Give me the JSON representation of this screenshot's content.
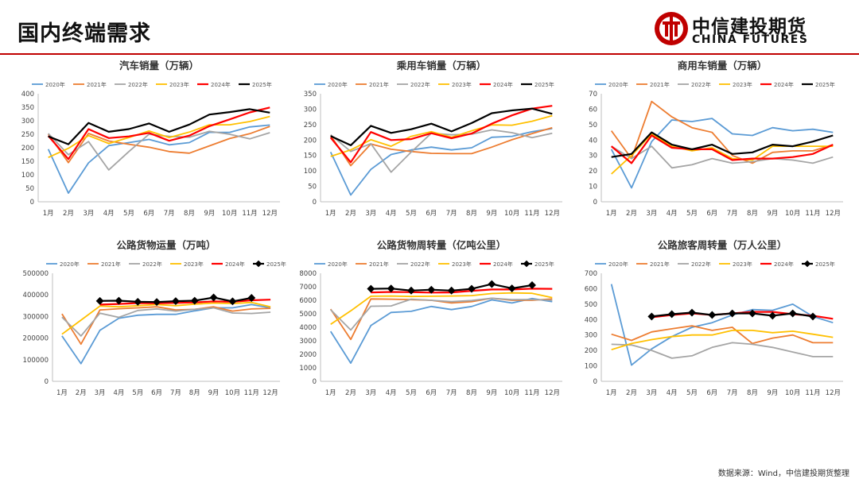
{
  "header": {
    "title": "国内终端需求",
    "logo_cn": "中信建投期货",
    "logo_en": "CHINA FUTURES",
    "brand_color": "#c00000"
  },
  "footer": {
    "source": "数据来源：Wind，中信建投期货整理"
  },
  "legend_labels": [
    "2020年",
    "2021年",
    "2022年",
    "2023年",
    "2024年",
    "2025年"
  ],
  "series_colors": [
    "#5b9bd5",
    "#ed7d31",
    "#a5a5a5",
    "#ffc000",
    "#ff0000",
    "#000000"
  ],
  "chart_data": [
    {
      "type": "line",
      "title": "汽车销量（万辆）",
      "categories": [
        "1月",
        "2月",
        "3月",
        "4月",
        "5月",
        "6月",
        "7月",
        "8月",
        "9月",
        "10月",
        "11月",
        "12月"
      ],
      "ylim": [
        0,
        400
      ],
      "yticks": [
        "0",
        "50",
        "100",
        "150",
        "200",
        "250",
        "300",
        "350",
        "400"
      ],
      "grid": false,
      "legend": "top",
      "series": [
        {
          "name": "2020年",
          "values": [
            195,
            32,
            144,
            208,
            219,
            231,
            211,
            219,
            257,
            257,
            277,
            284
          ]
        },
        {
          "name": "2021年",
          "values": [
            251,
            145,
            253,
            225,
            213,
            202,
            186,
            180,
            207,
            234,
            252,
            279
          ]
        },
        {
          "name": "2022年",
          "values": [
            253,
            174,
            223,
            118,
            186,
            250,
            242,
            239,
            261,
            250,
            233,
            256
          ]
        },
        {
          "name": "2023年",
          "values": [
            164,
            198,
            245,
            216,
            238,
            262,
            238,
            258,
            285,
            285,
            297,
            316
          ]
        },
        {
          "name": "2024年",
          "values": [
            244,
            158,
            269,
            236,
            242,
            255,
            226,
            245,
            280,
            305,
            331,
            349
          ]
        },
        {
          "name": "2025年",
          "values": [
            242,
            213,
            292,
            259,
            269,
            290,
            259,
            286,
            323,
            332,
            343,
            330
          ]
        }
      ]
    },
    {
      "type": "line",
      "title": "乘用车销量（万辆）",
      "categories": [
        "1月",
        "2月",
        "3月",
        "4月",
        "5月",
        "6月",
        "7月",
        "8月",
        "9月",
        "10月",
        "11月",
        "12月"
      ],
      "ylim": [
        0,
        350
      ],
      "yticks": [
        "0",
        "50",
        "100",
        "150",
        "200",
        "250",
        "300",
        "350"
      ],
      "grid": false,
      "legend": "top",
      "series": [
        {
          "name": "2020年",
          "values": [
            161,
            22,
            105,
            153,
            168,
            177,
            168,
            175,
            209,
            212,
            227,
            237
          ]
        },
        {
          "name": "2021年",
          "values": [
            215,
            117,
            187,
            170,
            163,
            157,
            156,
            156,
            177,
            201,
            221,
            240
          ]
        },
        {
          "name": "2022年",
          "values": [
            217,
            163,
            188,
            96,
            161,
            222,
            217,
            219,
            233,
            224,
            208,
            222
          ]
        },
        {
          "name": "2023年",
          "values": [
            147,
            168,
            201,
            180,
            212,
            227,
            209,
            230,
            249,
            248,
            261,
            279
          ]
        },
        {
          "name": "2024年",
          "values": [
            208,
            128,
            226,
            200,
            203,
            222,
            206,
            221,
            253,
            280,
            302,
            311
          ]
        },
        {
          "name": "2025年",
          "values": [
            213,
            183,
            246,
            223,
            235,
            253,
            228,
            255,
            287,
            296,
            302,
            285
          ]
        }
      ]
    },
    {
      "type": "line",
      "title": "商用车销量（万辆）",
      "categories": [
        "1月",
        "2月",
        "3月",
        "4月",
        "5月",
        "6月",
        "7月",
        "8月",
        "9月",
        "10月",
        "11月",
        "12月"
      ],
      "ylim": [
        0,
        70
      ],
      "yticks": [
        "0",
        "10",
        "20",
        "30",
        "40",
        "50",
        "60",
        "70"
      ],
      "grid": false,
      "legend": "top",
      "series": [
        {
          "name": "2020年",
          "values": [
            34,
            9,
            39,
            53,
            52,
            54,
            44,
            43,
            48,
            46,
            47,
            45
          ]
        },
        {
          "name": "2021年",
          "values": [
            46,
            28,
            65,
            55,
            48,
            45,
            30,
            25,
            32,
            33,
            33,
            37
          ]
        },
        {
          "name": "2022年",
          "values": [
            36,
            28,
            36,
            22,
            24,
            28,
            25,
            26,
            28,
            27,
            25,
            29
          ]
        },
        {
          "name": "2023年",
          "values": [
            18,
            30,
            44,
            36,
            33,
            35,
            28,
            27,
            36,
            36,
            36,
            36
          ]
        },
        {
          "name": "2024年",
          "values": [
            36,
            25,
            43,
            35,
            34,
            34,
            27,
            28,
            28,
            29,
            31,
            37
          ]
        },
        {
          "name": "2025年",
          "values": [
            29,
            31,
            45,
            37,
            34,
            37,
            31,
            32,
            37,
            36,
            39,
            43
          ]
        }
      ]
    },
    {
      "type": "line",
      "title": "公路货物运量（万吨）",
      "categories": [
        "1月",
        "2月",
        "3月",
        "4月",
        "5月",
        "6月",
        "7月",
        "8月",
        "9月",
        "10月",
        "11月",
        "12月"
      ],
      "ylim": [
        0,
        500000
      ],
      "yticks": [
        "0",
        "100000",
        "200000",
        "300000",
        "400000",
        "500000"
      ],
      "grid": false,
      "legend": "top",
      "series": [
        {
          "name": "2020年",
          "values": [
            210000,
            82000,
            236000,
            292000,
            306000,
            310000,
            310000,
            326000,
            340000,
            340000,
            355000,
            340000
          ]
        },
        {
          "name": "2021年",
          "values": [
            312000,
            172000,
            330000,
            336000,
            340000,
            345000,
            330000,
            333000,
            345000,
            325000,
            335000,
            338000
          ]
        },
        {
          "name": "2022年",
          "values": [
            297000,
            210000,
            315000,
            296000,
            328000,
            335000,
            325000,
            333000,
            340000,
            316000,
            314000,
            320000
          ]
        },
        {
          "name": "2023年",
          "values": [
            218000,
            283000,
            348000,
            345000,
            350000,
            355000,
            350000,
            357000,
            362000,
            360000,
            365000,
            345000
          ]
        },
        {
          "name": "2024年",
          "values": [
            null,
            null,
            355000,
            358000,
            362000,
            361000,
            363000,
            365000,
            370000,
            368000,
            375000,
            378000
          ]
        },
        {
          "name": "2025年",
          "values": [
            null,
            null,
            372000,
            373000,
            368000,
            367000,
            371000,
            373000,
            388000,
            370000,
            386000,
            null
          ]
        }
      ]
    },
    {
      "type": "line",
      "title": "公路货物周转量（亿吨公里）",
      "categories": [
        "1月",
        "2月",
        "3月",
        "4月",
        "5月",
        "6月",
        "7月",
        "8月",
        "9月",
        "10月",
        "11月",
        "12月"
      ],
      "ylim": [
        0,
        8000
      ],
      "yticks": [
        "0",
        "1000",
        "2000",
        "3000",
        "4000",
        "5000",
        "6000",
        "7000",
        "8000"
      ],
      "grid": false,
      "legend": "top",
      "series": [
        {
          "name": "2020年",
          "values": [
            3700,
            1350,
            4130,
            5100,
            5180,
            5540,
            5310,
            5540,
            6030,
            5800,
            6130,
            5900
          ]
        },
        {
          "name": "2021年",
          "values": [
            5350,
            3100,
            6100,
            6080,
            6050,
            6000,
            5800,
            5900,
            6150,
            6000,
            6000,
            6100
          ]
        },
        {
          "name": "2022年",
          "values": [
            5300,
            3800,
            5560,
            5580,
            6080,
            6000,
            5900,
            5980,
            6150,
            6050,
            6060,
            6000
          ]
        },
        {
          "name": "2023年",
          "values": [
            4220,
            5220,
            6300,
            6320,
            6280,
            6300,
            6320,
            6350,
            6500,
            6550,
            6520,
            6200
          ]
        },
        {
          "name": "2024年",
          "values": [
            null,
            null,
            6580,
            6620,
            6600,
            6570,
            6580,
            6700,
            6800,
            6800,
            6860,
            6850
          ]
        },
        {
          "name": "2025年",
          "values": [
            null,
            null,
            6850,
            6870,
            6720,
            6780,
            6720,
            6850,
            7200,
            6880,
            7120,
            null
          ]
        }
      ]
    },
    {
      "type": "line",
      "title": "公路旅客周转量（万人公里）",
      "categories": [
        "1月",
        "2月",
        "3月",
        "4月",
        "5月",
        "6月",
        "7月",
        "8月",
        "9月",
        "10月",
        "11月",
        "12月"
      ],
      "ylim": [
        0,
        700
      ],
      "yticks": [
        "0",
        "100",
        "200",
        "300",
        "400",
        "500",
        "600",
        "700"
      ],
      "grid": false,
      "legend": "top",
      "series": [
        {
          "name": "2020年",
          "values": [
            630,
            105,
            210,
            290,
            350,
            380,
            430,
            465,
            460,
            500,
            420,
            380
          ]
        },
        {
          "name": "2021年",
          "values": [
            305,
            265,
            320,
            340,
            360,
            330,
            350,
            245,
            280,
            300,
            250,
            250
          ]
        },
        {
          "name": "2022年",
          "values": [
            240,
            235,
            200,
            150,
            165,
            220,
            250,
            240,
            220,
            190,
            160,
            160
          ]
        },
        {
          "name": "2023年",
          "values": [
            205,
            245,
            270,
            290,
            300,
            300,
            330,
            330,
            315,
            325,
            305,
            285
          ]
        },
        {
          "name": "2024年",
          "values": [
            null,
            null,
            415,
            430,
            440,
            430,
            440,
            450,
            450,
            435,
            425,
            405
          ]
        },
        {
          "name": "2025年",
          "values": [
            null,
            null,
            420,
            435,
            445,
            430,
            440,
            440,
            425,
            440,
            420,
            null
          ]
        }
      ]
    }
  ]
}
